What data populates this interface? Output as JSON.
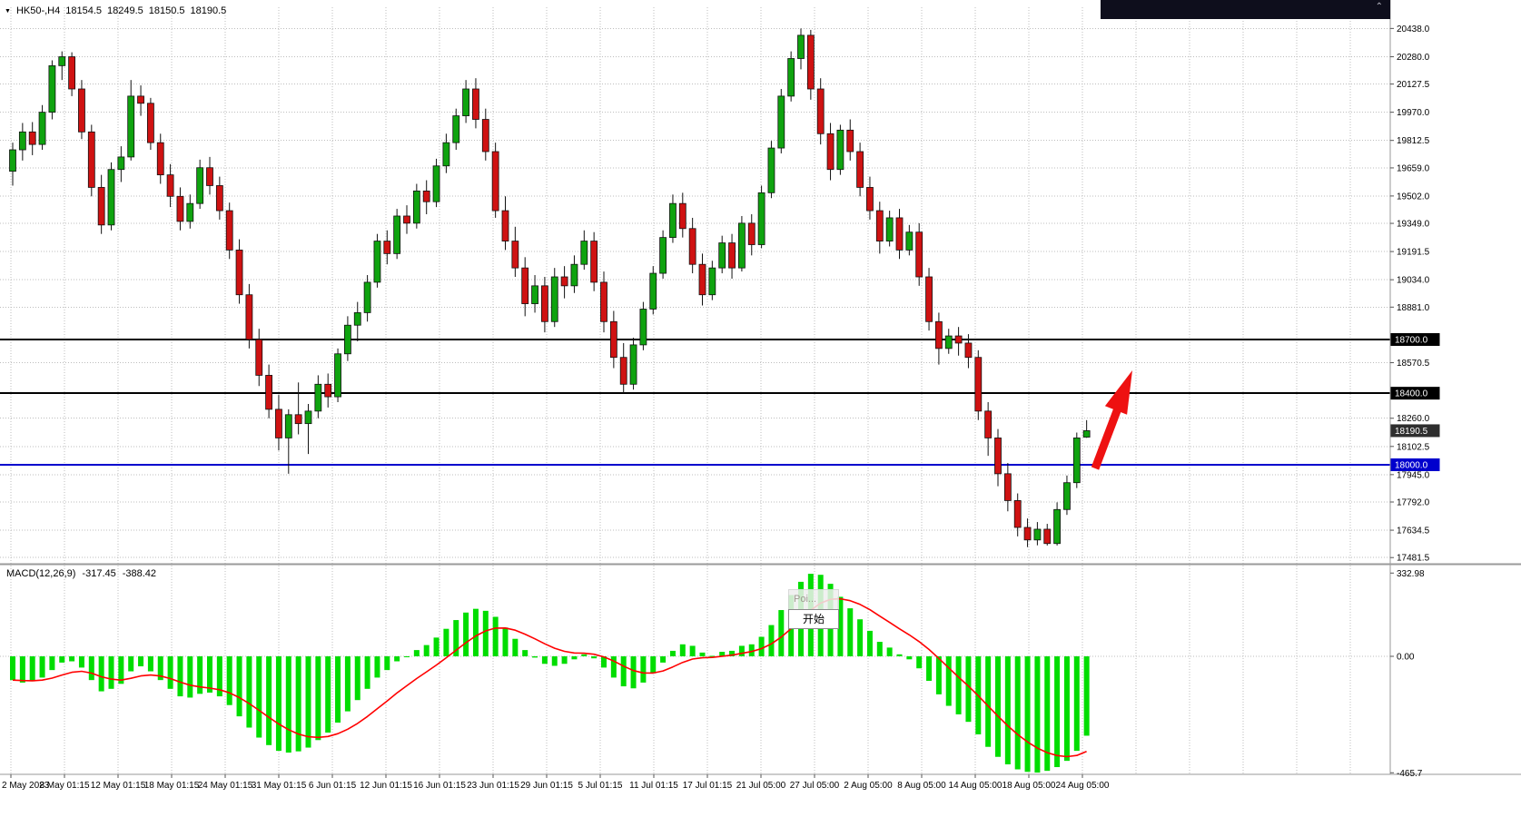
{
  "ticker": {
    "symbol_period": "HK50-,H4",
    "open": "18154.5",
    "high": "18249.5",
    "low": "18150.5",
    "close": "18190.5"
  },
  "indicator_label": {
    "name": "MACD(12,26,9)",
    "value_main": "-317.45",
    "value_signal": "-388.42"
  },
  "popup": {
    "hint": "Poi...",
    "button_label": "开始"
  },
  "price_axis": {
    "ticks": [
      20438.0,
      20280.0,
      20127.5,
      19970.0,
      19812.5,
      19659.0,
      19502.0,
      19349.0,
      19191.5,
      19034.0,
      18881.0,
      18570.5,
      18260.0,
      18102.5,
      17945.0,
      17792.0,
      17634.5,
      17481.5
    ],
    "badges": [
      {
        "label": "18700.0",
        "price": 18700.0,
        "bg": "#000000"
      },
      {
        "label": "18400.0",
        "price": 18400.0,
        "bg": "#000000"
      },
      {
        "label": "18190.5",
        "price": 18190.5,
        "bg": "#2e2e2e"
      },
      {
        "label": "18000.0",
        "price": 18000.0,
        "bg": "#0000cd"
      }
    ]
  },
  "macd_axis": {
    "max_label": "332.98",
    "zero_label": "0.00",
    "min_label": "-465.7",
    "max": 332.98,
    "min": -465.7
  },
  "time_axis": {
    "labels": [
      "2 May 2023",
      "8 May 01:15",
      "12 May 01:15",
      "18 May 01:15",
      "24 May 01:15",
      "31 May 01:15",
      "6 Jun 01:15",
      "12 Jun 01:15",
      "16 Jun 01:15",
      "23 Jun 01:15",
      "29 Jun 01:15",
      "5 Jul 01:15",
      "11 Jul 01:15",
      "17 Jul 01:15",
      "21 Jul 05:00",
      "27 Jul 05:00",
      "2 Aug 05:00",
      "8 Aug 05:00",
      "14 Aug 05:00",
      "18 Aug 05:00",
      "24 Aug 05:00"
    ]
  },
  "levels": [
    {
      "price": 18700.0,
      "color": "#000000"
    },
    {
      "price": 18400.0,
      "color": "#000000"
    },
    {
      "price": 18000.0,
      "color": "#0000cd"
    }
  ],
  "colors": {
    "candle_up": "#0fa30f",
    "candle_down": "#cf1212",
    "wick": "#111111",
    "grid": "#bdbdbd",
    "macd_hist": "#00dd00",
    "macd_signal": "#ff0000",
    "arrow": "#ee1111",
    "axis_text": "#000000"
  },
  "chart_data": {
    "type": "candlestick",
    "title": "HK50-,H4",
    "symbol": "HK50-",
    "timeframe": "H4",
    "current_ohlc": {
      "open": 18154.5,
      "high": 18249.5,
      "low": 18150.5,
      "close": 18190.5
    },
    "ylim": [
      17450,
      20560
    ],
    "grid": true,
    "levels": [
      18700.0,
      18400.0,
      18000.0
    ],
    "candles": [
      [
        19640,
        19800,
        19560,
        19760
      ],
      [
        19760,
        19910,
        19700,
        19860
      ],
      [
        19860,
        19915,
        19730,
        19790
      ],
      [
        19790,
        20010,
        19760,
        19970
      ],
      [
        19970,
        20260,
        19930,
        20230
      ],
      [
        20230,
        20310,
        20150,
        20280
      ],
      [
        20280,
        20305,
        20060,
        20100
      ],
      [
        20100,
        20150,
        19820,
        19860
      ],
      [
        19860,
        19900,
        19500,
        19550
      ],
      [
        19550,
        19620,
        19290,
        19340
      ],
      [
        19340,
        19690,
        19310,
        19650
      ],
      [
        19650,
        19780,
        19580,
        19720
      ],
      [
        19720,
        20150,
        19700,
        20060
      ],
      [
        20060,
        20120,
        19950,
        20020
      ],
      [
        20020,
        20050,
        19760,
        19800
      ],
      [
        19800,
        19850,
        19570,
        19620
      ],
      [
        19620,
        19680,
        19440,
        19500
      ],
      [
        19500,
        19550,
        19310,
        19360
      ],
      [
        19360,
        19510,
        19320,
        19460
      ],
      [
        19460,
        19705,
        19430,
        19660
      ],
      [
        19660,
        19720,
        19510,
        19560
      ],
      [
        19560,
        19610,
        19370,
        19420
      ],
      [
        19420,
        19465,
        19150,
        19200
      ],
      [
        19200,
        19260,
        18900,
        18950
      ],
      [
        18950,
        19010,
        18650,
        18700
      ],
      [
        18700,
        18760,
        18440,
        18500
      ],
      [
        18500,
        18560,
        18260,
        18310
      ],
      [
        18310,
        18390,
        18080,
        18150
      ],
      [
        18150,
        18310,
        17950,
        18280
      ],
      [
        18280,
        18460,
        18170,
        18230
      ],
      [
        18230,
        18340,
        18060,
        18300
      ],
      [
        18300,
        18500,
        18260,
        18450
      ],
      [
        18450,
        18510,
        18320,
        18380
      ],
      [
        18380,
        18650,
        18350,
        18620
      ],
      [
        18620,
        18830,
        18580,
        18780
      ],
      [
        18780,
        18910,
        18690,
        18850
      ],
      [
        18850,
        19060,
        18800,
        19020
      ],
      [
        19020,
        19290,
        18990,
        19250
      ],
      [
        19250,
        19310,
        19120,
        19180
      ],
      [
        19180,
        19430,
        19150,
        19390
      ],
      [
        19390,
        19450,
        19290,
        19350
      ],
      [
        19350,
        19570,
        19320,
        19530
      ],
      [
        19530,
        19590,
        19400,
        19470
      ],
      [
        19470,
        19710,
        19440,
        19670
      ],
      [
        19670,
        19850,
        19630,
        19800
      ],
      [
        19800,
        19990,
        19760,
        19950
      ],
      [
        19950,
        20150,
        19910,
        20100
      ],
      [
        20100,
        20160,
        19880,
        19930
      ],
      [
        19930,
        19990,
        19700,
        19750
      ],
      [
        19750,
        19800,
        19380,
        19420
      ],
      [
        19420,
        19500,
        19200,
        19250
      ],
      [
        19250,
        19330,
        19050,
        19100
      ],
      [
        19100,
        19160,
        18830,
        18900
      ],
      [
        18900,
        19060,
        18850,
        19000
      ],
      [
        19000,
        19050,
        18740,
        18800
      ],
      [
        18800,
        19100,
        18770,
        19050
      ],
      [
        19050,
        19110,
        18930,
        19000
      ],
      [
        19000,
        19170,
        18960,
        19120
      ],
      [
        19120,
        19310,
        19090,
        19250
      ],
      [
        19250,
        19300,
        18970,
        19020
      ],
      [
        19020,
        19080,
        18740,
        18800
      ],
      [
        18800,
        18860,
        18540,
        18600
      ],
      [
        18600,
        18680,
        18400,
        18450
      ],
      [
        18450,
        18710,
        18420,
        18670
      ],
      [
        18670,
        18910,
        18640,
        18870
      ],
      [
        18870,
        19110,
        18840,
        19070
      ],
      [
        19070,
        19310,
        19040,
        19270
      ],
      [
        19270,
        19510,
        19240,
        19460
      ],
      [
        19460,
        19520,
        19270,
        19320
      ],
      [
        19320,
        19380,
        19070,
        19120
      ],
      [
        19120,
        19180,
        18890,
        18950
      ],
      [
        18950,
        19140,
        18920,
        19100
      ],
      [
        19100,
        19280,
        19070,
        19240
      ],
      [
        19240,
        19290,
        19040,
        19100
      ],
      [
        19100,
        19390,
        19080,
        19350
      ],
      [
        19350,
        19400,
        19170,
        19230
      ],
      [
        19230,
        19560,
        19210,
        19520
      ],
      [
        19520,
        19810,
        19490,
        19770
      ],
      [
        19770,
        20100,
        19740,
        20060
      ],
      [
        20060,
        20310,
        20030,
        20270
      ],
      [
        20270,
        20438,
        20210,
        20400
      ],
      [
        20400,
        20430,
        20040,
        20100
      ],
      [
        20100,
        20160,
        19790,
        19850
      ],
      [
        19850,
        19910,
        19590,
        19650
      ],
      [
        19650,
        19900,
        19620,
        19870
      ],
      [
        19870,
        19930,
        19700,
        19750
      ],
      [
        19750,
        19800,
        19500,
        19550
      ],
      [
        19550,
        19610,
        19370,
        19420
      ],
      [
        19420,
        19470,
        19180,
        19250
      ],
      [
        19250,
        19420,
        19220,
        19380
      ],
      [
        19380,
        19430,
        19150,
        19200
      ],
      [
        19200,
        19340,
        19170,
        19300
      ],
      [
        19300,
        19350,
        19000,
        19050
      ],
      [
        19050,
        19100,
        18750,
        18800
      ],
      [
        18800,
        18850,
        18560,
        18650
      ],
      [
        18650,
        18760,
        18620,
        18720
      ],
      [
        18720,
        18770,
        18610,
        18680
      ],
      [
        18680,
        18730,
        18540,
        18600
      ],
      [
        18600,
        18640,
        18250,
        18300
      ],
      [
        18300,
        18350,
        18050,
        18150
      ],
      [
        18150,
        18200,
        17880,
        17950
      ],
      [
        17950,
        18010,
        17740,
        17800
      ],
      [
        17800,
        17840,
        17600,
        17650
      ],
      [
        17650,
        17700,
        17540,
        17580
      ],
      [
        17580,
        17680,
        17550,
        17640
      ],
      [
        17640,
        17670,
        17549,
        17560
      ],
      [
        17560,
        17790,
        17549,
        17750
      ],
      [
        17750,
        17940,
        17720,
        17900
      ],
      [
        17900,
        18180,
        17870,
        18150
      ],
      [
        18154.5,
        18249.5,
        18150.5,
        18190.5
      ]
    ],
    "macd_histogram": [
      -95,
      -105,
      -100,
      -85,
      -55,
      -25,
      -20,
      -45,
      -95,
      -140,
      -130,
      -110,
      -60,
      -40,
      -60,
      -95,
      -130,
      -160,
      -165,
      -150,
      -145,
      -160,
      -195,
      -240,
      -285,
      -325,
      -355,
      -378,
      -385,
      -380,
      -365,
      -335,
      -305,
      -265,
      -220,
      -175,
      -130,
      -85,
      -55,
      -20,
      0,
      25,
      45,
      75,
      110,
      145,
      175,
      190,
      182,
      158,
      115,
      70,
      25,
      -5,
      -30,
      -38,
      -30,
      -12,
      8,
      -8,
      -45,
      -85,
      -120,
      -128,
      -105,
      -68,
      -25,
      22,
      48,
      42,
      15,
      2,
      18,
      22,
      42,
      48,
      78,
      125,
      185,
      245,
      298,
      330,
      326,
      290,
      238,
      192,
      148,
      102,
      58,
      35,
      8,
      -12,
      -48,
      -98,
      -152,
      -198,
      -232,
      -262,
      -312,
      -362,
      -402,
      -432,
      -452,
      -462,
      -465,
      -458,
      -443,
      -418,
      -378,
      -317.45
    ],
    "macd_signal_period": 9,
    "annotations": [
      {
        "type": "arrow",
        "direction": "up-right",
        "color": "#ee1111"
      }
    ]
  }
}
